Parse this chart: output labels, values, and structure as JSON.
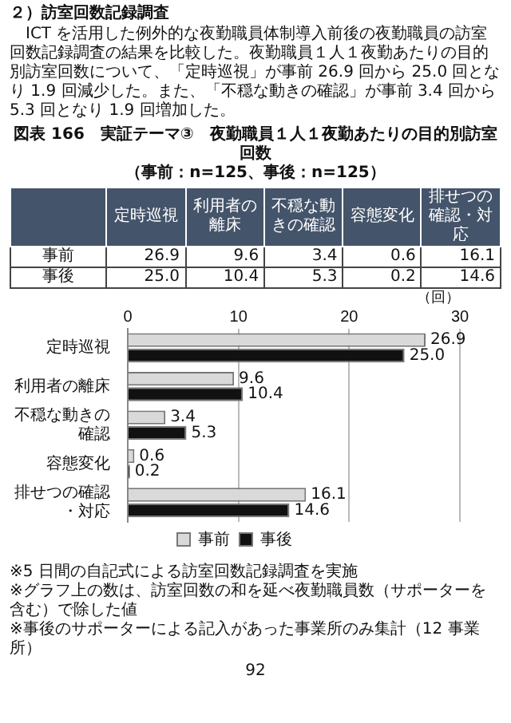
{
  "chart_data": {
    "type": "bar",
    "orientation": "horizontal",
    "title": "図表 166　実証テーマ③　夜勤職員１人１夜勤あたりの目的別訪室回数",
    "subtitle": "（事前：n=125、事後：n=125）",
    "categories": [
      "定時巡視",
      "利用者の離床",
      "不穏な動きの確認",
      "容態変化",
      "排せつの確認・対応"
    ],
    "series": [
      {
        "name": "事前",
        "color": "#d9d9d9",
        "values": [
          26.9,
          9.6,
          3.4,
          0.6,
          16.1
        ],
        "value_labels": [
          "26.9",
          "9.6",
          "3.4",
          "0.6",
          "16.1"
        ]
      },
      {
        "name": "事後",
        "color": "#111111",
        "values": [
          25.0,
          10.4,
          5.3,
          0.2,
          14.6
        ],
        "value_labels": [
          "25.0",
          "10.4",
          "5.3",
          "0.2",
          "14.6"
        ]
      }
    ],
    "xlim": [
      0,
      30
    ],
    "xticks": [
      0,
      10,
      20,
      30
    ],
    "xlabel": "（回）",
    "grid": "x",
    "legend": "bottom",
    "annotations": [
      "２）訪室回数記録調査",
      "ICT を活用した例外的な夜勤職員体制導入前後の夜勤職員の訪室回数記録調査の結果を比較した。夜勤職員１人１夜勤あたりの目的別訪室回数について、「定時巡視」が事前 26.9 回から 25.0 回となり 1.9 回減少した。また、「不穏な動きの確認」が事前 3.4 回から 5.3 回となり 1.9 回増加した。",
      "※5 日間の自記式による訪室回数記録調査を実施",
      "※グラフ上の数は、訪室回数の和を延べ夜勤職員数（サポーターを含む）で除した値",
      "※事後のサポーターによる記入があった事業所のみ集計（12 事業所）",
      "92"
    ]
  }
}
